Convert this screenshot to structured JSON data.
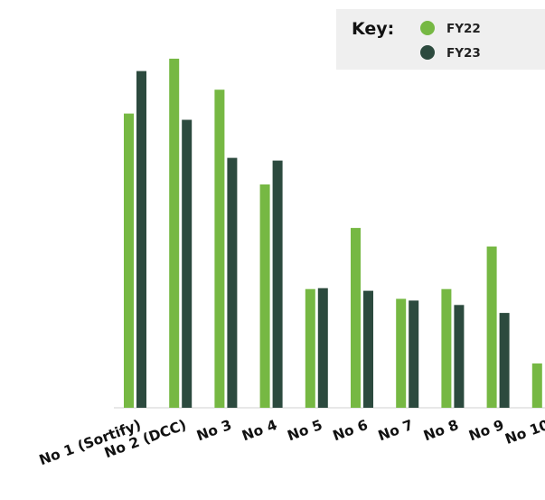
{
  "chart_data": {
    "type": "bar",
    "title": "",
    "xlabel": "",
    "ylabel": "",
    "categories": [
      "No 1 (Sortify)",
      "No 2 (DCC)",
      "No 3",
      "No 4",
      "No 5",
      "No 6",
      "No 7",
      "No 8",
      "No 9",
      "No 10"
    ],
    "series": [
      {
        "name": "FY22",
        "color": "#76b843",
        "values": [
          332,
          394,
          359,
          252,
          134,
          203,
          123,
          134,
          182,
          50
        ]
      },
      {
        "name": "FY23",
        "color": "#2c4a3e",
        "values": [
          380,
          325,
          282,
          279,
          135,
          132,
          121,
          116,
          107,
          0
        ]
      }
    ],
    "ylim": [
      0,
      400
    ],
    "grid": false,
    "y_axis_visible": false,
    "legend": {
      "title": "Key:",
      "position": "top-right"
    }
  }
}
